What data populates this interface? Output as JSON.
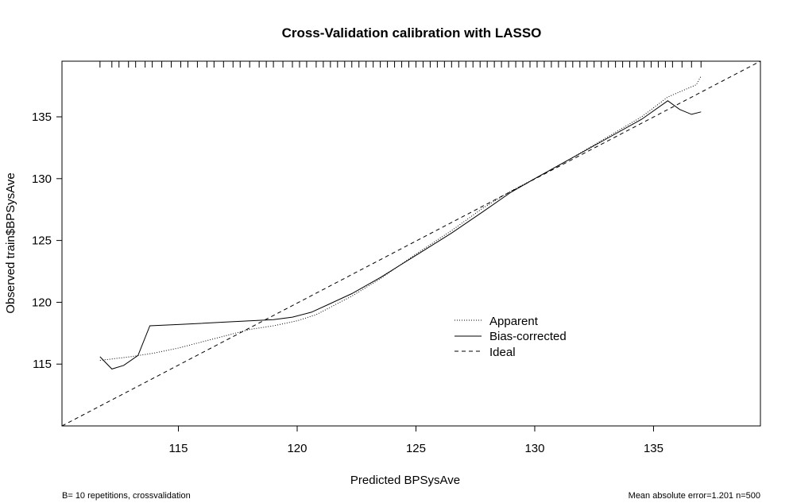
{
  "chart_data": {
    "type": "line",
    "title": "Cross-Validation calibration with LASSO",
    "xlabel": "Predicted BPSysAve",
    "ylabel": "Observed train$BPSysAve",
    "xlim": [
      110.1,
      139.5
    ],
    "ylim": [
      110.0,
      139.5
    ],
    "x_ticks": [
      115,
      120,
      125,
      130,
      135
    ],
    "y_ticks": [
      115,
      120,
      125,
      130,
      135
    ],
    "grid": false,
    "legend_position": "center-right",
    "series": [
      {
        "name": "Apparent",
        "style": "dotted",
        "x": [
          111.7,
          113.0,
          114.0,
          115.0,
          116.0,
          117.0,
          118.0,
          119.0,
          120.0,
          120.8,
          121.5,
          122.3,
          123.5,
          125.0,
          126.5,
          127.8,
          129.0,
          130.0,
          131.5,
          133.0,
          134.5,
          135.6,
          136.8,
          137.0
        ],
        "y": [
          115.3,
          115.6,
          115.9,
          116.3,
          116.8,
          117.3,
          117.8,
          118.1,
          118.5,
          119.0,
          119.7,
          120.5,
          121.9,
          123.9,
          125.8,
          127.6,
          129.0,
          130.0,
          131.6,
          133.3,
          135.0,
          136.6,
          137.6,
          138.3
        ]
      },
      {
        "name": "Bias-corrected",
        "style": "solid",
        "x": [
          111.7,
          112.2,
          112.7,
          113.3,
          113.8,
          115.0,
          117.0,
          119.0,
          119.8,
          120.6,
          121.4,
          122.3,
          123.5,
          125.0,
          126.5,
          127.8,
          129.0,
          130.0,
          131.5,
          133.0,
          134.5,
          135.6,
          136.1,
          136.6,
          137.0
        ],
        "y": [
          115.6,
          114.6,
          114.9,
          115.7,
          118.1,
          118.2,
          118.4,
          118.6,
          118.8,
          119.2,
          119.9,
          120.7,
          122.0,
          123.8,
          125.6,
          127.3,
          128.9,
          130.0,
          131.6,
          133.2,
          134.8,
          136.3,
          135.6,
          135.2,
          135.4
        ]
      },
      {
        "name": "Ideal",
        "style": "dashed",
        "x": [
          110.1,
          139.5
        ],
        "y": [
          110.0,
          139.5
        ]
      }
    ],
    "rug_x": [
      111.7,
      112.2,
      112.5,
      112.9,
      113.2,
      113.6,
      113.9,
      114.3,
      114.7,
      115.1,
      115.4,
      115.8,
      116.2,
      116.5,
      116.9,
      117.3,
      117.6,
      118.0,
      118.4,
      118.7,
      119.0,
      119.4,
      119.8,
      120.1,
      120.4,
      120.8,
      121.1,
      121.4,
      121.7,
      122.0,
      122.3,
      122.6,
      122.9,
      123.2,
      123.5,
      123.8,
      124.1,
      124.4,
      124.7,
      125.0,
      125.3,
      125.6,
      125.9,
      126.2,
      126.5,
      126.8,
      127.1,
      127.4,
      127.7,
      128.0,
      128.3,
      128.6,
      128.9,
      129.2,
      129.5,
      129.8,
      130.1,
      130.4,
      130.7,
      131.0,
      131.3,
      131.6,
      131.9,
      132.2,
      132.5,
      132.8,
      133.1,
      133.4,
      133.7,
      134.0,
      134.3,
      134.6,
      134.9,
      135.2,
      135.5,
      135.8,
      136.2,
      136.6,
      137.0
    ],
    "legend": [
      "Apparent",
      "Bias-corrected",
      "Ideal"
    ],
    "footnote_left": "B= 10 repetitions, crossvalidation",
    "footnote_right": "Mean absolute error=1.201 n=500"
  }
}
